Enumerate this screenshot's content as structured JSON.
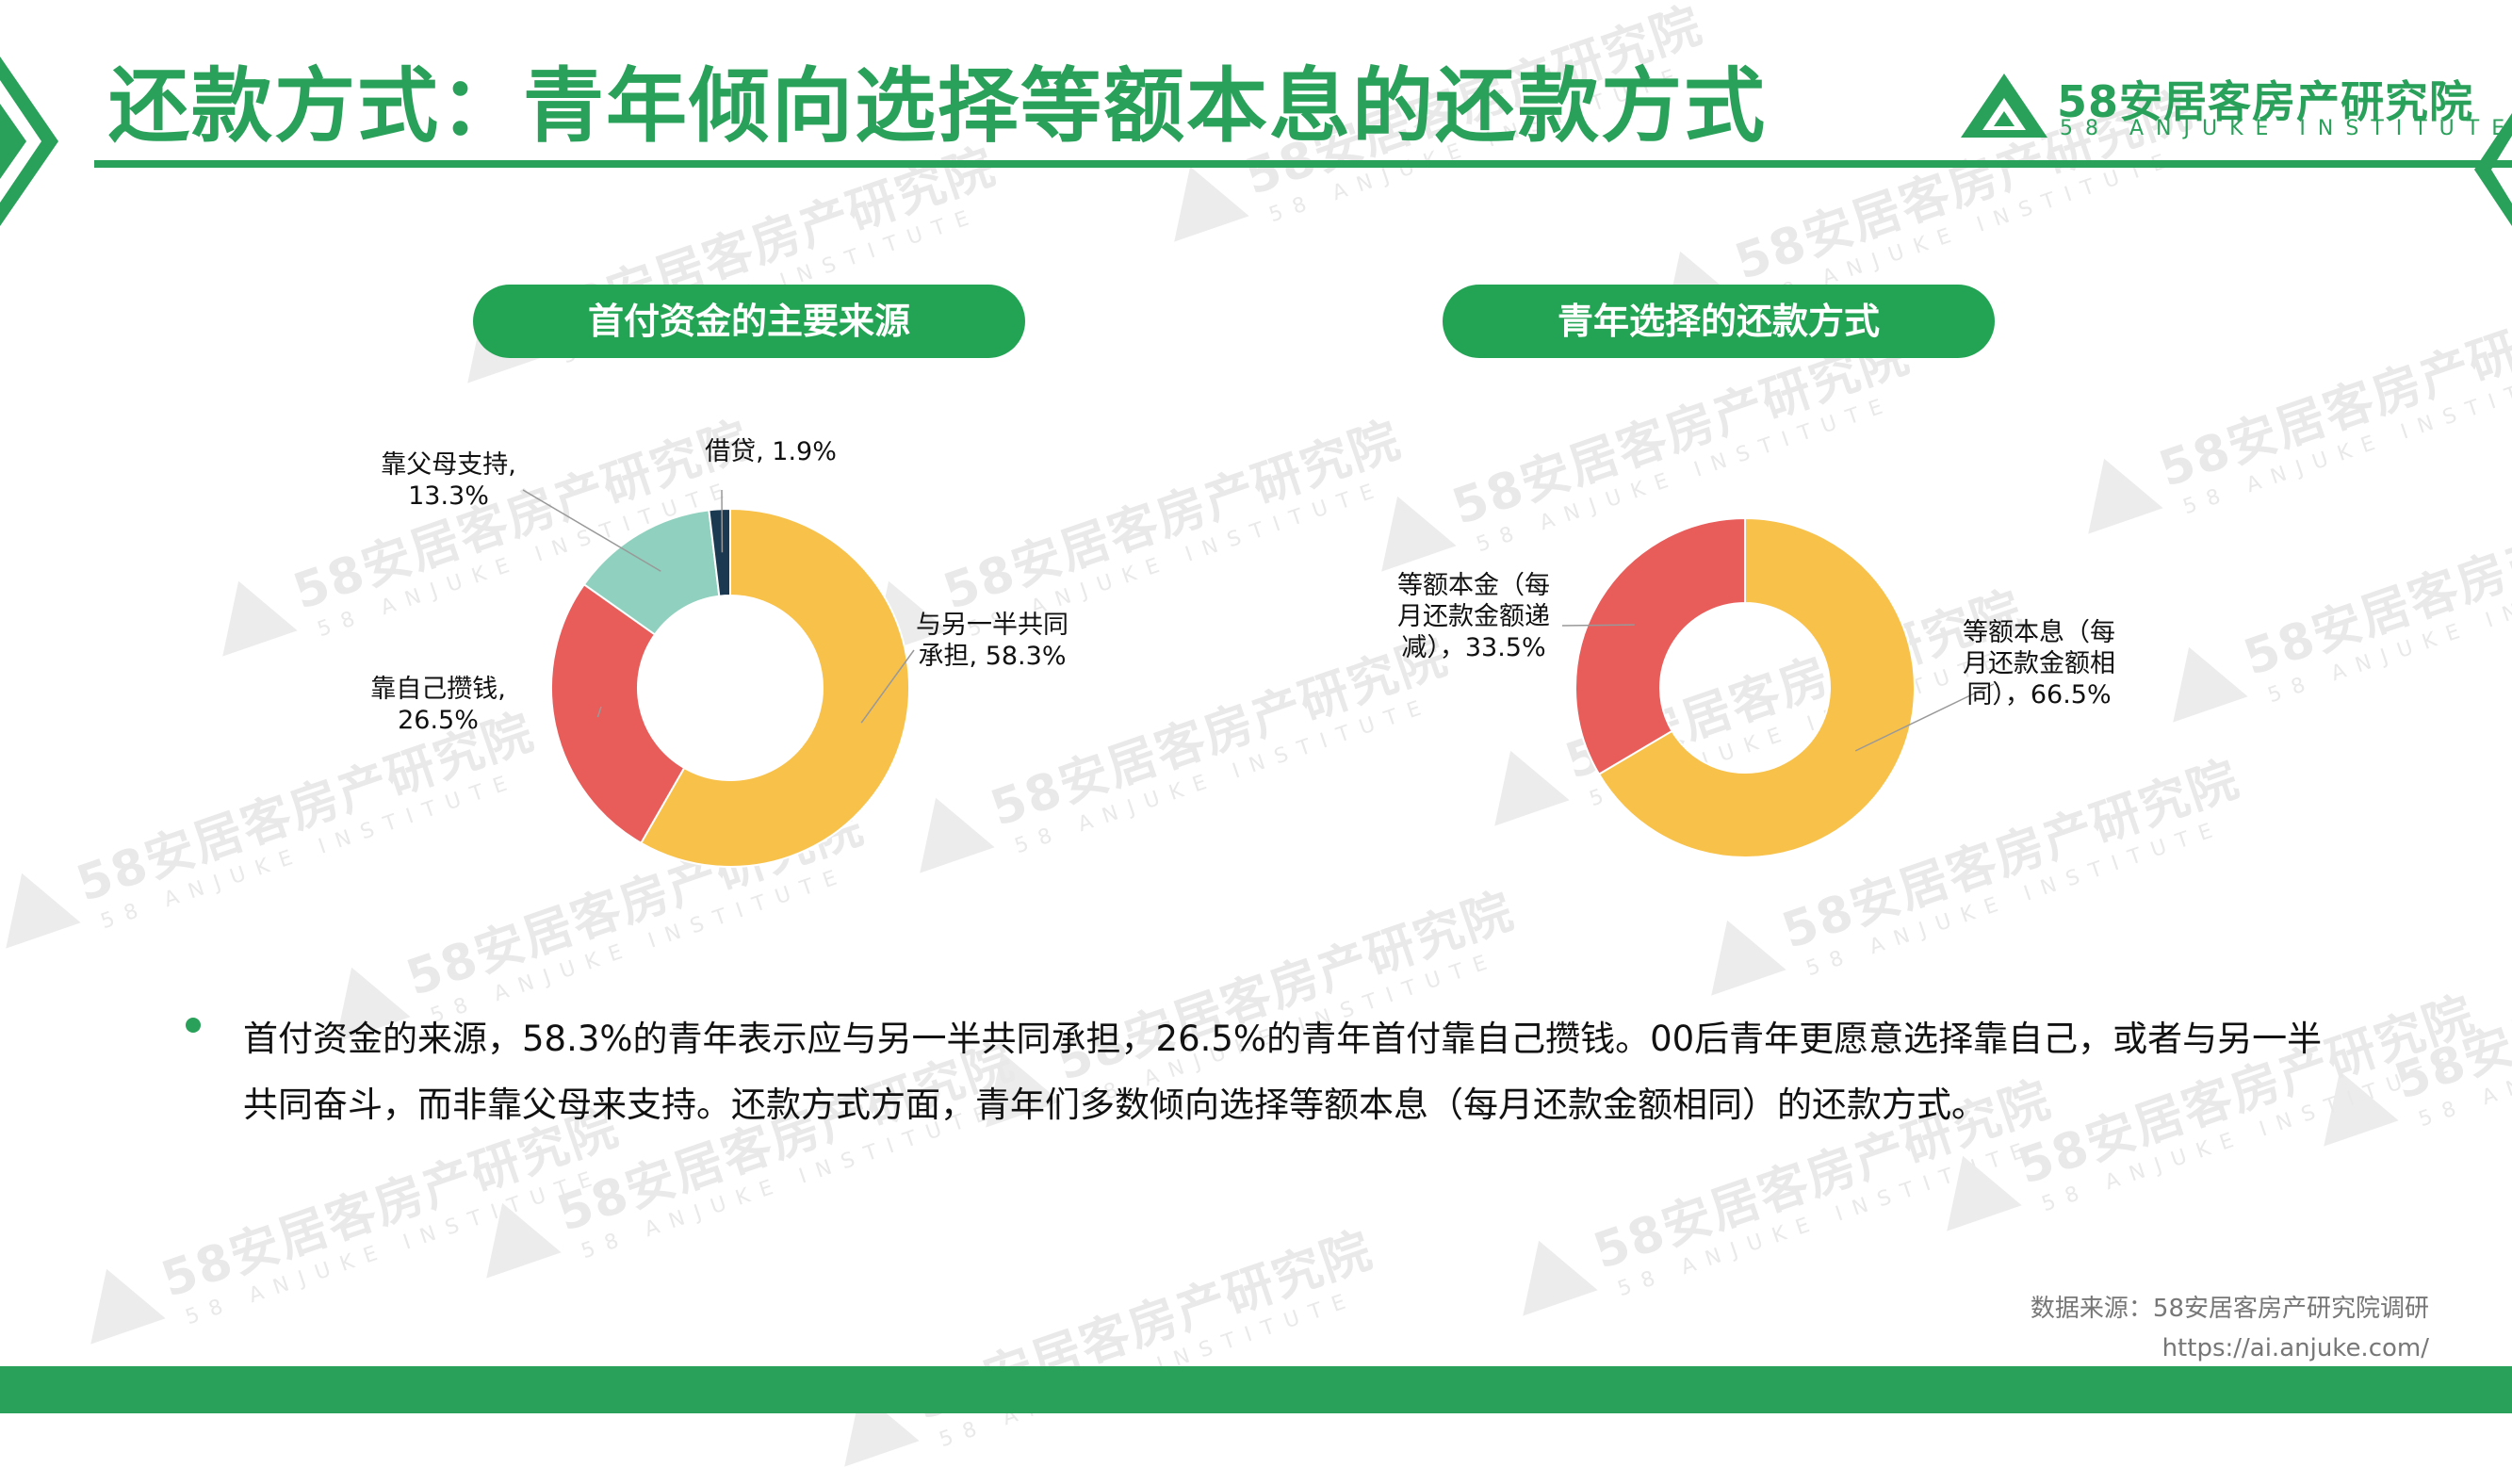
{
  "header": {
    "title": "还款方式：青年倾向选择等额本息的还款方式"
  },
  "logo": {
    "name": "58安居客房产研究院",
    "en": "58 ANJUKE INSTITUTE"
  },
  "watermark": {
    "cn": "58安居客房产研究院",
    "en": "58 ANJUKE INSTITUTE"
  },
  "colors": {
    "brand": "#2aa15a",
    "pill": "#23a455",
    "yellow": "#f8c14a",
    "red": "#e85c5a",
    "mint": "#8fd1be",
    "navy": "#1b3a52"
  },
  "chart_data": [
    {
      "type": "pie",
      "title": "首付资金的主要来源",
      "slices": [
        {
          "label": "与另一半共同承担",
          "value": 58.3,
          "display": "与另一半共同承担, 58.3%",
          "label_lines": [
            "与另一半共同",
            "承担, 58.3%"
          ]
        },
        {
          "label": "靠自己攒钱",
          "value": 26.5,
          "display": "靠自己攒钱, 26.5%",
          "label_lines": [
            "靠自己攒钱,",
            "26.5%"
          ]
        },
        {
          "label": "靠父母支持",
          "value": 13.3,
          "display": "靠父母支持, 13.3%",
          "label_lines": [
            "靠父母支持,",
            "13.3%"
          ]
        },
        {
          "label": "借贷",
          "value": 1.9,
          "display": "借贷, 1.9%",
          "label_lines": [
            "借贷, 1.9%"
          ]
        }
      ]
    },
    {
      "type": "pie",
      "title": "青年选择的还款方式",
      "slices": [
        {
          "label": "等额本息（每月还款金额相同）",
          "value": 66.5,
          "display": "等额本息（每月还款金额相同），66.5%",
          "label_lines": [
            "等额本息（每",
            "月还款金额相",
            "同），66.5%"
          ]
        },
        {
          "label": "等额本金（每月还款金额递减）",
          "value": 33.5,
          "display": "等额本金（每月还款金额递减），33.5%",
          "label_lines": [
            "等额本金（每",
            "月还款金额递",
            "减），33.5%"
          ]
        }
      ]
    }
  ],
  "summary": {
    "text": "首付资金的来源，58.3%的青年表示应与另一半共同承担，26.5%的青年首付靠自己攒钱。00后青年更愿意选择靠自己，或者与另一半共同奋斗，而非靠父母来支持。还款方式方面，青年们多数倾向选择等额本息（每月还款金额相同）的还款方式。"
  },
  "footer": {
    "source": "数据来源：58安居客房产研究院调研",
    "url": "https://ai.anjuke.com/"
  }
}
